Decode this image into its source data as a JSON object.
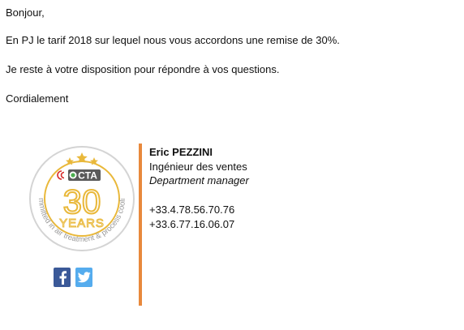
{
  "email": {
    "greeting": "Bonjour,",
    "body_line_1": "En PJ le tarif 2018 sur lequel nous vous accordons une remise de 30%.",
    "body_line_2": "Je reste à votre disposition pour répondre à vos questions.",
    "closing": "Cordialement"
  },
  "signature": {
    "name": "Eric PEZZINI",
    "role": "Ingénieur des ventes",
    "title": "Department manager",
    "phone_1": "+33.4.78.56.70.76",
    "phone_2": "+33.6.77.16.06.07"
  },
  "logo": {
    "brand": "CTA",
    "anniversary_number": "30",
    "anniversary_word": "YEARS",
    "tagline": "committed in air treatment & process cooling"
  },
  "social": {
    "facebook_icon": "facebook-icon",
    "twitter_icon": "twitter-icon"
  },
  "colors": {
    "accent_orange": "#e8893c",
    "logo_gold": "#e9b83a",
    "logo_grey": "#b5b5b5",
    "brand_red": "#d92b2b",
    "facebook_blue": "#3b5998",
    "twitter_blue": "#55acee"
  }
}
